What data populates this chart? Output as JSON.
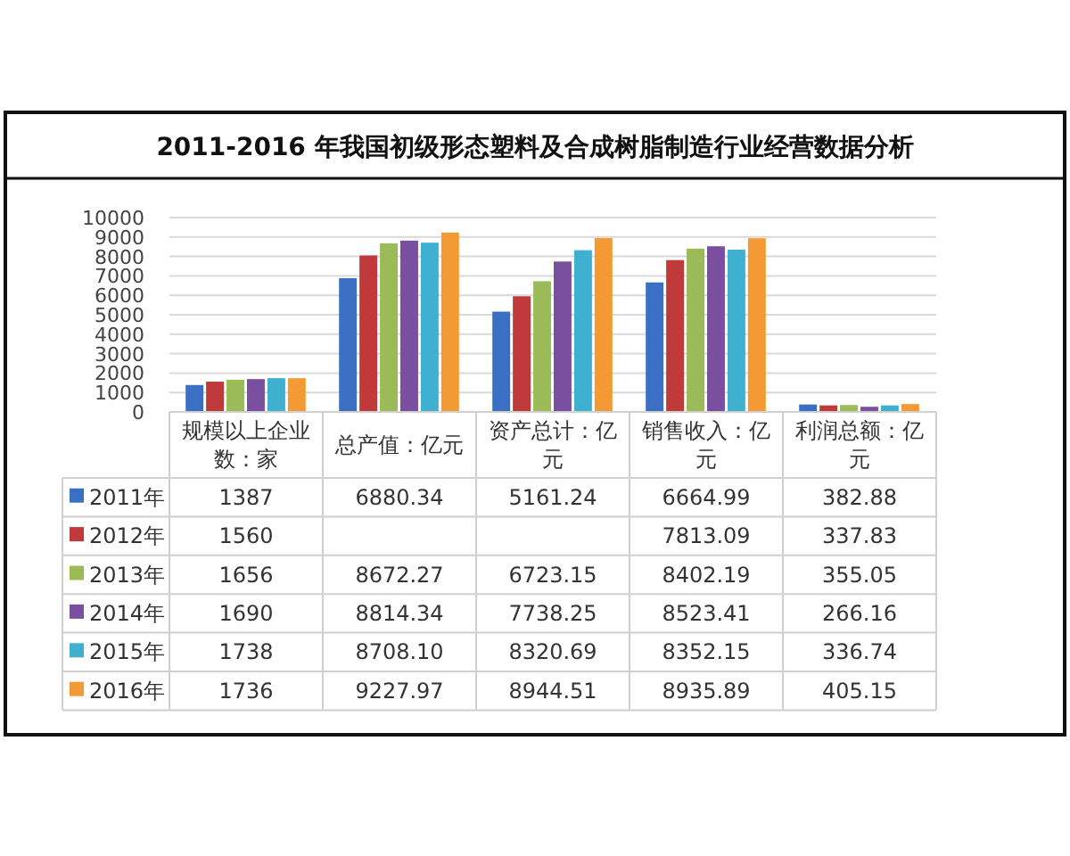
{
  "chart_data": {
    "type": "bar",
    "title": "2011-2016 年我国初级形态塑料及合成树脂制造行业经营数据分析",
    "categories": [
      "规模以上企业数：家",
      "总产值：亿元",
      "资产总计：亿元",
      "销售收入：亿元",
      "利润总额：亿元"
    ],
    "series": [
      {
        "name": "2011年",
        "color": "#3a6fc4",
        "values": [
          1387,
          6880.34,
          5161.24,
          6664.99,
          382.88
        ],
        "value_labels": [
          "1387",
          "6880.34",
          "5161.24",
          "6664.99",
          "382.88"
        ]
      },
      {
        "name": "2012年",
        "color": "#c0393b",
        "values": [
          1560,
          8050,
          5950,
          7813.09,
          337.83
        ],
        "value_labels": [
          "1560",
          null,
          null,
          "7813.09",
          "337.83"
        ]
      },
      {
        "name": "2013年",
        "color": "#9bbb59",
        "values": [
          1656,
          8672.27,
          6723.15,
          8402.19,
          355.05
        ],
        "value_labels": [
          "1656",
          "8672.27",
          "6723.15",
          "8402.19",
          "355.05"
        ]
      },
      {
        "name": "2014年",
        "color": "#7b4fa0",
        "values": [
          1690,
          8814.34,
          7738.25,
          8523.41,
          266.16
        ],
        "value_labels": [
          "1690",
          "8814.34",
          "7738.25",
          "8523.41",
          "266.16"
        ]
      },
      {
        "name": "2015年",
        "color": "#3fb0cf",
        "values": [
          1738,
          8708.1,
          8320.69,
          8352.15,
          336.74
        ],
        "value_labels": [
          "1738",
          "8708.10",
          "8320.69",
          "8352.15",
          "336.74"
        ]
      },
      {
        "name": "2016年",
        "color": "#f39a35",
        "values": [
          1736,
          9227.97,
          8944.51,
          8935.89,
          405.15
        ],
        "value_labels": [
          "1736",
          "9227.97",
          "8944.51",
          "8935.89",
          "405.15"
        ]
      }
    ],
    "ylim": [
      0,
      10000
    ],
    "yticks": [
      0,
      1000,
      2000,
      3000,
      4000,
      5000,
      6000,
      7000,
      8000,
      9000,
      10000
    ],
    "grid": "y",
    "legend": "bottom"
  }
}
